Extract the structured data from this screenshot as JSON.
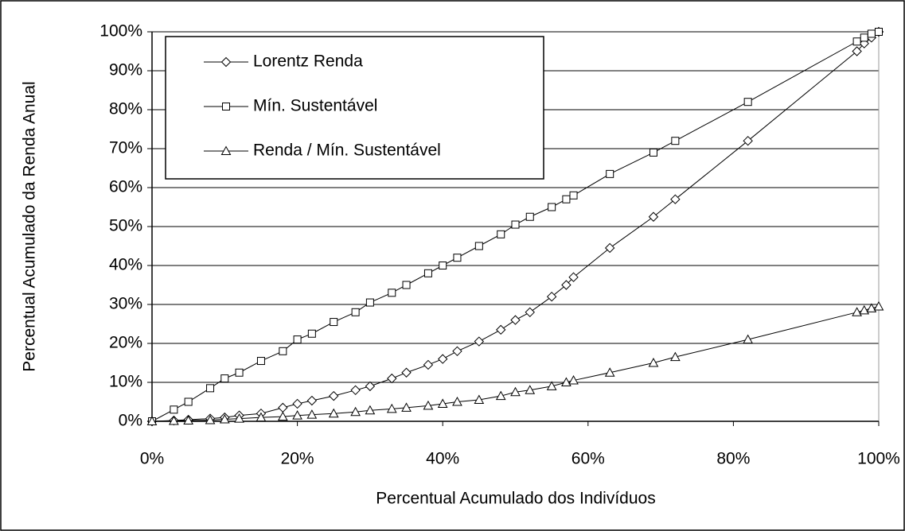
{
  "chart_data": {
    "type": "line",
    "xlabel": "Percentual Acumulado dos Indivíduos",
    "ylabel": "Percentual Acumulado da Renda Anual",
    "x": [
      0,
      3,
      5,
      8,
      10,
      12,
      15,
      18,
      20,
      22,
      25,
      28,
      30,
      33,
      35,
      38,
      40,
      42,
      45,
      48,
      50,
      52,
      55,
      57,
      58,
      63,
      69,
      72,
      82,
      97,
      98,
      99,
      100
    ],
    "series": [
      {
        "name": "Lorentz Renda",
        "color": "#000000",
        "marker": "diamond",
        "values": [
          0,
          0.2,
          0.4,
          0.7,
          1,
          1.5,
          2,
          3.5,
          4.5,
          5.3,
          6.5,
          8,
          9,
          11,
          12.5,
          14.5,
          16,
          18,
          20.5,
          23.5,
          26,
          28,
          32,
          35,
          37,
          44.5,
          52.5,
          57,
          72,
          95,
          97,
          98.5,
          100
        ]
      },
      {
        "name": "Mín. Sustentável",
        "color": "#000000",
        "marker": "square",
        "values": [
          0,
          3,
          5,
          8.5,
          11,
          12.5,
          15.5,
          18,
          21,
          22.5,
          25.5,
          28,
          30.5,
          33,
          35,
          38,
          40,
          42,
          45,
          48,
          50.5,
          52.5,
          55,
          57,
          58,
          63.5,
          69,
          72,
          82,
          97.5,
          98.5,
          99.5,
          100
        ]
      },
      {
        "name": "Renda / Mín. Sustentável",
        "color": "#000000",
        "marker": "triangle",
        "values": [
          0,
          0.1,
          0.2,
          0.3,
          0.5,
          0.7,
          1,
          1.2,
          1.5,
          1.7,
          2,
          2.4,
          2.8,
          3.2,
          3.5,
          4,
          4.5,
          5,
          5.5,
          6.5,
          7.5,
          8,
          9,
          10,
          10.5,
          12.5,
          15,
          16.5,
          21,
          28,
          28.5,
          29,
          29.5
        ]
      }
    ],
    "xlim": [
      0,
      100
    ],
    "xticks": [
      {
        "value": 0,
        "label": "0%"
      },
      {
        "value": 20,
        "label": "20%"
      },
      {
        "value": 40,
        "label": "40%"
      },
      {
        "value": 60,
        "label": "60%"
      },
      {
        "value": 80,
        "label": "80%"
      },
      {
        "value": 100,
        "label": "100%"
      }
    ],
    "ylim": [
      0,
      100
    ],
    "yticks": [
      {
        "value": 0,
        "label": "0%"
      },
      {
        "value": 10,
        "label": "10%"
      },
      {
        "value": 20,
        "label": "20%"
      },
      {
        "value": 30,
        "label": "30%"
      },
      {
        "value": 40,
        "label": "40%"
      },
      {
        "value": 50,
        "label": "50%"
      },
      {
        "value": 60,
        "label": "60%"
      },
      {
        "value": 70,
        "label": "70%"
      },
      {
        "value": 80,
        "label": "80%"
      },
      {
        "value": 90,
        "label": "90%"
      },
      {
        "value": 100,
        "label": "100%"
      }
    ],
    "grid": true,
    "legend": "upper-left"
  }
}
